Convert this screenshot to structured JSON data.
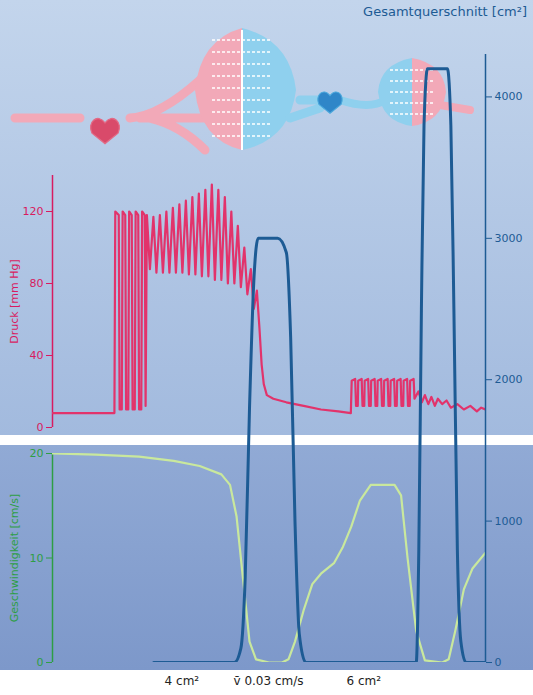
{
  "chart_data": [
    {
      "type": "line",
      "ylabel": "Druck [mm Hg]",
      "color": "#d81b60",
      "xlim": [
        0,
        100
      ],
      "xticks": [],
      "ylim": [
        0,
        140
      ],
      "yticks": [
        0,
        40,
        80,
        120
      ],
      "series": [
        {
          "color": "#e2336b",
          "x": [
            0,
            14.3,
            14.5,
            15.3,
            15.5,
            16,
            16.2,
            16.8,
            17,
            17.5,
            17.7,
            18.3,
            18.5,
            19,
            19.2,
            19.8,
            20,
            20.5,
            20.7,
            21.3,
            21.5,
            21.8,
            22.5,
            23.3,
            24,
            24.8,
            25.5,
            26.3,
            27,
            27.8,
            28.5,
            29.3,
            30,
            30.8,
            31.5,
            32.3,
            33,
            33.8,
            34.5,
            35.3,
            36,
            36.8,
            37.5,
            38.3,
            39,
            39.8,
            40.5,
            41.3,
            42,
            42.8,
            43.5,
            44.3,
            45,
            45.8,
            46.5,
            47.2,
            47.8,
            48.3,
            48.8,
            49.5,
            51,
            54,
            58,
            62,
            66,
            68.9,
            69.1,
            69.9,
            70.1,
            70.5,
            70.6,
            71.4,
            71.6,
            72,
            72.1,
            72.9,
            73.1,
            73.5,
            73.6,
            74.4,
            74.6,
            75,
            75.1,
            75.9,
            76.1,
            76.5,
            76.6,
            77.4,
            77.6,
            78,
            78.1,
            78.9,
            79.1,
            79.5,
            79.6,
            80.4,
            80.6,
            81,
            81.1,
            81.9,
            82.1,
            82.5,
            82.6,
            83.4,
            83.6,
            84.5,
            85.3,
            86,
            86.8,
            87.5,
            88.3,
            89,
            90,
            91,
            92,
            93.5,
            95,
            96.5,
            98,
            99,
            100
          ],
          "values": [
            8,
            8,
            120,
            118,
            10,
            10,
            120,
            118,
            10,
            10,
            120,
            118,
            10,
            10,
            120,
            118,
            10,
            10,
            120,
            118,
            12,
            118,
            88,
            117,
            86,
            118,
            86,
            120,
            86,
            122,
            86,
            124,
            86,
            126,
            85,
            128,
            85,
            130,
            84,
            132,
            84,
            135,
            82,
            132,
            82,
            128,
            80,
            120,
            80,
            112,
            78,
            100,
            74,
            88,
            66,
            76,
            55,
            35,
            24,
            18,
            16,
            14,
            12,
            10,
            9,
            8,
            26,
            27,
            12,
            12,
            26,
            27,
            12,
            12,
            26,
            27,
            12,
            12,
            26,
            27,
            12,
            12,
            26,
            27,
            12,
            12,
            26,
            27,
            12,
            12,
            26,
            27,
            12,
            12,
            26,
            27,
            12,
            12,
            26,
            27,
            12,
            12,
            26,
            27,
            16,
            20,
            14,
            18,
            13,
            17,
            12,
            16,
            13,
            15,
            11,
            13,
            10,
            12,
            9,
            11,
            10
          ]
        }
      ]
    },
    {
      "type": "line",
      "ylabel": "Geschwindigkeit [cm/s]",
      "color": "#2e9e44",
      "xlim": [
        0,
        100
      ],
      "xticks": [],
      "ylim": [
        0,
        20
      ],
      "yticks": [
        0,
        10,
        20
      ],
      "annotations": [
        "4 cm²",
        "v̄ 0.03 cm/s",
        "6 cm²"
      ],
      "series": [
        {
          "color": "#c9e89d",
          "x": [
            0,
            10,
            20,
            28,
            34,
            39,
            41,
            42.5,
            44,
            45.5,
            47,
            50,
            53,
            54.5,
            56,
            58,
            60,
            62,
            65,
            67,
            69,
            71,
            73.5,
            79,
            80.5,
            82,
            84,
            86,
            90,
            91.5,
            93,
            95,
            97,
            100
          ],
          "values": [
            20,
            19.9,
            19.7,
            19.3,
            18.8,
            18,
            17,
            14,
            8,
            2,
            0.3,
            0,
            0,
            0.3,
            2,
            5,
            7.5,
            8.5,
            9.5,
            11,
            13,
            15.5,
            17,
            17,
            16,
            10,
            3,
            0.2,
            0,
            0.3,
            3,
            7,
            9,
            10.5
          ]
        }
      ]
    },
    {
      "type": "line",
      "y2label": "Gesamtquerschnitt [cm²]",
      "color": "#1d5b94",
      "xlim": [
        0,
        100
      ],
      "xticks": [],
      "y2lim": [
        0,
        4300
      ],
      "y2ticks": [
        0,
        1000,
        2000,
        3000,
        4000
      ],
      "series": [
        {
          "axis": "y2",
          "color": "#1d5b94",
          "x": [
            23.4,
            42,
            43.5,
            44.5,
            45.5,
            46.5,
            47.5,
            49,
            52,
            54,
            55,
            56,
            57,
            58.5,
            84,
            84.6,
            85.2,
            85.8,
            86.6,
            91.2,
            92,
            92.7,
            93.5,
            94.3,
            95.5,
            100
          ],
          "values": [
            0,
            0,
            100,
            600,
            1800,
            2700,
            3000,
            3000,
            3000,
            2900,
            2300,
            1000,
            200,
            0,
            0,
            800,
            2500,
            3800,
            4200,
            4200,
            3800,
            2500,
            800,
            150,
            0,
            0
          ]
        }
      ]
    }
  ]
}
